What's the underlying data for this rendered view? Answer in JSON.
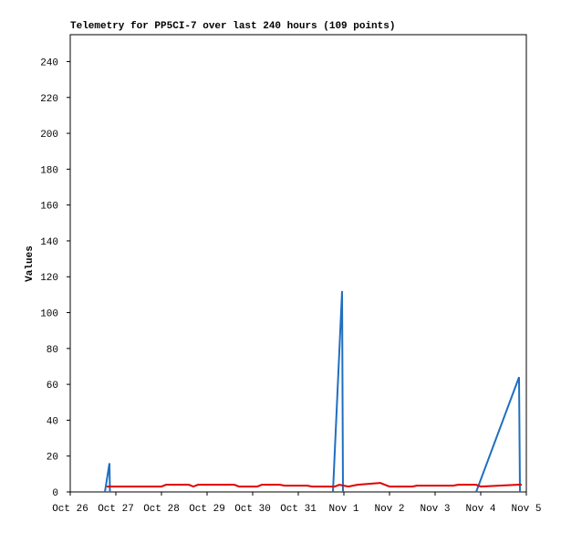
{
  "chart_data": {
    "type": "line",
    "title": "Telemetry for PP5CI-7 over last 240 hours (109 points)",
    "y_label": "Values",
    "xlim": [
      0,
      10
    ],
    "xticks": [
      {
        "value": 0,
        "label": "Oct 26"
      },
      {
        "value": 1,
        "label": "Oct 27"
      },
      {
        "value": 2,
        "label": "Oct 28"
      },
      {
        "value": 3,
        "label": "Oct 29"
      },
      {
        "value": 4,
        "label": "Oct 30"
      },
      {
        "value": 5,
        "label": "Oct 31"
      },
      {
        "value": 6,
        "label": "Nov 1"
      },
      {
        "value": 7,
        "label": "Nov 2"
      },
      {
        "value": 8,
        "label": "Nov 3"
      },
      {
        "value": 9,
        "label": "Nov 4"
      },
      {
        "value": 10,
        "label": "Nov 5"
      }
    ],
    "ylim": [
      0,
      255
    ],
    "yticks": [
      0,
      20,
      40,
      60,
      80,
      100,
      120,
      140,
      160,
      180,
      200,
      220,
      240
    ],
    "series": [
      {
        "color": "#1f6fc1",
        "x": [
          0.76,
          0.86,
          0.87,
          2.0,
          5.76,
          5.96,
          5.98,
          7.0,
          8.9,
          9.84,
          9.86
        ],
        "values": [
          0,
          16,
          0,
          null,
          0,
          112,
          0,
          null,
          0,
          64,
          0
        ]
      },
      {
        "color": "#e00000",
        "x": [
          0.8,
          2.0,
          2.1,
          2.6,
          2.7,
          2.8,
          3.6,
          3.7,
          4.1,
          4.2,
          4.6,
          4.7,
          5.2,
          5.3,
          5.8,
          5.9,
          6.1,
          6.3,
          6.8,
          6.9,
          7.0,
          7.5,
          7.6,
          8.4,
          8.5,
          8.9,
          9.0,
          9.4,
          9.8,
          9.9
        ],
        "values": [
          3,
          3,
          4,
          4,
          3,
          4,
          4,
          3,
          3,
          4,
          4,
          3.5,
          3.5,
          3,
          3,
          4,
          3,
          4,
          5,
          4,
          3,
          3,
          3.5,
          3.5,
          4,
          4,
          3,
          3.5,
          4,
          4
        ]
      }
    ]
  }
}
